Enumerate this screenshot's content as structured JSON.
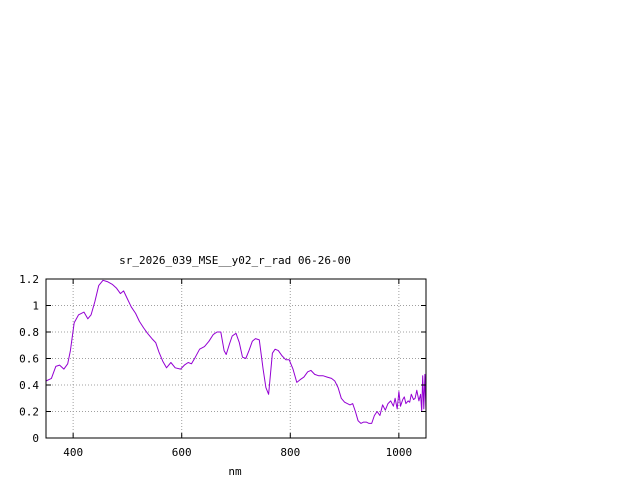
{
  "chart_data": {
    "type": "line",
    "title": "sr_2026_039_MSE__y02_r_rad 06-26-00",
    "xlabel": "nm",
    "ylabel": "",
    "xlim": [
      350,
      1050
    ],
    "ylim": [
      0,
      1.2
    ],
    "grid": true,
    "x_ticks": [
      400,
      600,
      800,
      1000
    ],
    "x_tick_labels": [
      "400",
      "600",
      "800",
      "1000"
    ],
    "y_ticks": [
      0,
      0.2,
      0.4,
      0.6,
      0.8,
      1.0,
      1.2
    ],
    "y_tick_labels": [
      "0",
      "0.2",
      "0.4",
      "0.6",
      "0.8",
      "1",
      "1.2"
    ],
    "series": [
      {
        "color": "#9400d3",
        "x": [
          350,
          360,
          368,
          375,
          383,
          390,
          395,
          402,
          410,
          420,
          427,
          433,
          440,
          447,
          455,
          463,
          472,
          480,
          487,
          493,
          500,
          507,
          515,
          522,
          530,
          537,
          545,
          552,
          558,
          565,
          572,
          580,
          588,
          598,
          605,
          612,
          618,
          625,
          633,
          642,
          650,
          658,
          665,
          672,
          678,
          682,
          688,
          693,
          700,
          706,
          712,
          718,
          724,
          730,
          736,
          743,
          750,
          755,
          760,
          763,
          767,
          772,
          778,
          785,
          792,
          798,
          805,
          812,
          818,
          825,
          832,
          838,
          845,
          852,
          860,
          868,
          876,
          882,
          888,
          894,
          900,
          905,
          910,
          915,
          920,
          925,
          930,
          935,
          940,
          945,
          950,
          955,
          960,
          965,
          970,
          975,
          980,
          985,
          990,
          993,
          997,
          1000,
          1003,
          1007,
          1010,
          1013,
          1017,
          1020,
          1023,
          1027,
          1030,
          1033,
          1037,
          1040,
          1042,
          1044,
          1046,
          1048,
          1050
        ],
        "values": [
          0.43,
          0.45,
          0.54,
          0.55,
          0.52,
          0.56,
          0.66,
          0.87,
          0.93,
          0.95,
          0.9,
          0.93,
          1.03,
          1.15,
          1.19,
          1.18,
          1.16,
          1.13,
          1.09,
          1.11,
          1.05,
          0.99,
          0.94,
          0.88,
          0.83,
          0.79,
          0.75,
          0.72,
          0.65,
          0.58,
          0.53,
          0.57,
          0.53,
          0.52,
          0.55,
          0.57,
          0.56,
          0.61,
          0.67,
          0.69,
          0.73,
          0.78,
          0.8,
          0.8,
          0.66,
          0.63,
          0.71,
          0.77,
          0.79,
          0.72,
          0.61,
          0.6,
          0.66,
          0.73,
          0.75,
          0.74,
          0.52,
          0.38,
          0.33,
          0.46,
          0.64,
          0.67,
          0.66,
          0.62,
          0.59,
          0.59,
          0.52,
          0.42,
          0.44,
          0.46,
          0.5,
          0.51,
          0.48,
          0.47,
          0.47,
          0.46,
          0.45,
          0.43,
          0.38,
          0.3,
          0.27,
          0.26,
          0.25,
          0.26,
          0.2,
          0.13,
          0.11,
          0.12,
          0.12,
          0.11,
          0.11,
          0.17,
          0.2,
          0.17,
          0.25,
          0.21,
          0.26,
          0.28,
          0.24,
          0.3,
          0.22,
          0.35,
          0.24,
          0.29,
          0.31,
          0.26,
          0.28,
          0.27,
          0.33,
          0.29,
          0.3,
          0.36,
          0.28,
          0.33,
          0.2,
          0.47,
          0.22,
          0.48,
          0.2
        ]
      }
    ]
  }
}
